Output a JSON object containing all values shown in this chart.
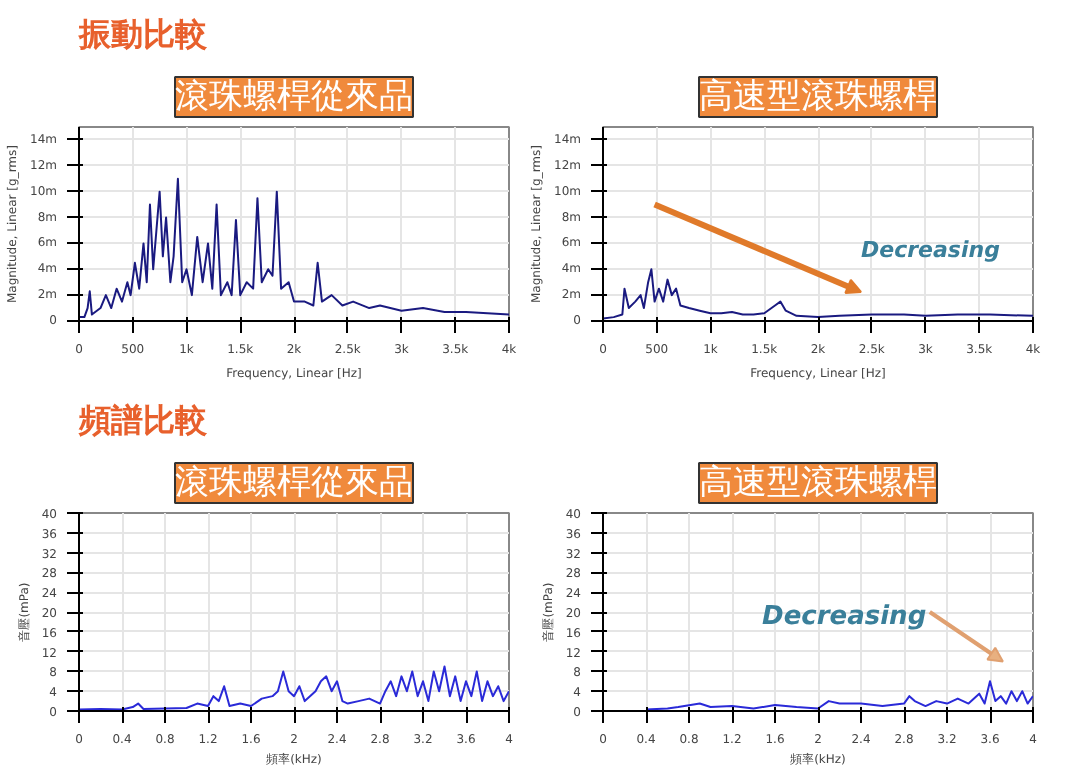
{
  "chart_data": [
    {
      "type": "line",
      "title": "滾珠螺桿從來品",
      "annotations": [
        "振動比較"
      ],
      "xlabel": "Frequency, Linear [Hz]",
      "ylabel": "Magnitude, Linear [g_rms]",
      "grid": true,
      "x": [
        0,
        50,
        80,
        100,
        120,
        200,
        250,
        300,
        350,
        400,
        450,
        480,
        520,
        560,
        600,
        630,
        660,
        690,
        720,
        750,
        780,
        810,
        850,
        880,
        920,
        960,
        1000,
        1050,
        1100,
        1150,
        1200,
        1240,
        1280,
        1320,
        1380,
        1420,
        1460,
        1500,
        1560,
        1620,
        1660,
        1700,
        1760,
        1800,
        1840,
        1880,
        1950,
        2000,
        2100,
        2180,
        2220,
        2260,
        2350,
        2450,
        2550,
        2700,
        2800,
        3000,
        3200,
        3400,
        3600,
        3800,
        4000
      ],
      "series": [
        {
          "color": "#1a1a80",
          "values": [
            0.3,
            0.3,
            1,
            2.3,
            0.5,
            1,
            2,
            1,
            2.5,
            1.5,
            3,
            2,
            4.5,
            2.5,
            6,
            3,
            9,
            4,
            7,
            10,
            5,
            8,
            3,
            5,
            11,
            3,
            4,
            2,
            6.5,
            3,
            6,
            2.5,
            9,
            2,
            3,
            2,
            7.8,
            2,
            3,
            2.5,
            9.5,
            3,
            4,
            3.5,
            10,
            2.5,
            3,
            1.5,
            1.5,
            1.2,
            4.5,
            1.5,
            2,
            1.2,
            1.5,
            1,
            1.2,
            0.8,
            1,
            0.7,
            0.7,
            0.6,
            0.5
          ]
        }
      ],
      "xlim": [
        0,
        4000
      ],
      "ylim": [
        0,
        15
      ],
      "xticks": [
        0,
        500,
        {
          "value": 1000,
          "label": "1k"
        },
        {
          "value": 1500,
          "label": "1.5k"
        },
        {
          "value": 2000,
          "label": "2k"
        },
        {
          "value": 2500,
          "label": "2.5k"
        },
        {
          "value": 3000,
          "label": "3k"
        },
        {
          "value": 3500,
          "label": "3.5k"
        },
        {
          "value": 4000,
          "label": "4k"
        }
      ],
      "yticks": [
        0,
        {
          "value": 2,
          "label": "2m"
        },
        {
          "value": 4,
          "label": "4m"
        },
        {
          "value": 6,
          "label": "6m"
        },
        {
          "value": 8,
          "label": "8m"
        },
        {
          "value": 10,
          "label": "10m"
        },
        {
          "value": 12,
          "label": "12m"
        },
        {
          "value": 14,
          "label": "14m"
        }
      ]
    },
    {
      "type": "line",
      "title": "高速型滾珠螺桿",
      "annotations": [
        "Decreasing"
      ],
      "xlabel": "Frequency, Linear [Hz]",
      "ylabel": "Magnitude, Linear [g_rms]",
      "grid": true,
      "x": [
        0,
        100,
        180,
        200,
        240,
        300,
        350,
        380,
        420,
        450,
        480,
        520,
        560,
        600,
        640,
        680,
        720,
        800,
        900,
        1000,
        1100,
        1200,
        1300,
        1400,
        1500,
        1600,
        1650,
        1700,
        1800,
        2000,
        2200,
        2500,
        2800,
        3000,
        3300,
        3600,
        4000
      ],
      "series": [
        {
          "color": "#1a1a80",
          "values": [
            0.2,
            0.3,
            0.5,
            2.5,
            1,
            1.5,
            2,
            1,
            3,
            4,
            1.5,
            2.5,
            1.5,
            3.2,
            2,
            2.5,
            1.2,
            1,
            0.8,
            0.6,
            0.6,
            0.7,
            0.5,
            0.5,
            0.6,
            1.2,
            1.5,
            0.8,
            0.4,
            0.3,
            0.4,
            0.5,
            0.5,
            0.4,
            0.5,
            0.5,
            0.4
          ]
        }
      ],
      "xlim": [
        0,
        4000
      ],
      "ylim": [
        0,
        15
      ],
      "xticks": [
        0,
        500,
        {
          "value": 1000,
          "label": "1k"
        },
        {
          "value": 1500,
          "label": "1.5k"
        },
        {
          "value": 2000,
          "label": "2k"
        },
        {
          "value": 2500,
          "label": "2.5k"
        },
        {
          "value": 3000,
          "label": "3k"
        },
        {
          "value": 3500,
          "label": "3.5k"
        },
        {
          "value": 4000,
          "label": "4k"
        }
      ],
      "yticks": [
        0,
        {
          "value": 2,
          "label": "2m"
        },
        {
          "value": 4,
          "label": "4m"
        },
        {
          "value": 6,
          "label": "6m"
        },
        {
          "value": 8,
          "label": "8m"
        },
        {
          "value": 10,
          "label": "10m"
        },
        {
          "value": 12,
          "label": "12m"
        },
        {
          "value": 14,
          "label": "14m"
        }
      ]
    },
    {
      "type": "line",
      "title": "滾珠螺桿從來品",
      "annotations": [
        "頻譜比較"
      ],
      "xlabel": "頻率(kHz)",
      "ylabel": "音壓(mPa)",
      "grid": true,
      "x": [
        0,
        0.2,
        0.4,
        0.5,
        0.55,
        0.6,
        0.8,
        1.0,
        1.1,
        1.2,
        1.25,
        1.3,
        1.35,
        1.4,
        1.5,
        1.6,
        1.7,
        1.8,
        1.85,
        1.9,
        1.95,
        2.0,
        2.05,
        2.1,
        2.2,
        2.25,
        2.3,
        2.35,
        2.4,
        2.45,
        2.5,
        2.6,
        2.7,
        2.8,
        2.85,
        2.9,
        2.95,
        3.0,
        3.05,
        3.1,
        3.15,
        3.2,
        3.25,
        3.3,
        3.35,
        3.4,
        3.45,
        3.5,
        3.55,
        3.6,
        3.65,
        3.7,
        3.75,
        3.8,
        3.85,
        3.9,
        3.95,
        4.0
      ],
      "series": [
        {
          "color": "#2a2ad8",
          "values": [
            0.3,
            0.4,
            0.3,
            0.8,
            1.5,
            0.4,
            0.5,
            0.6,
            1.5,
            1,
            3,
            2,
            5,
            1,
            1.5,
            1,
            2.5,
            3,
            4,
            8,
            4,
            3,
            5,
            2,
            4,
            6,
            7,
            4,
            6,
            2,
            1.5,
            2,
            2.5,
            1.5,
            4,
            6,
            3,
            7,
            4,
            8,
            3,
            6,
            2,
            8,
            4,
            9,
            3,
            7,
            2,
            6,
            3,
            8,
            2,
            6,
            3,
            5,
            2,
            4
          ]
        }
      ],
      "xlim": [
        0,
        4
      ],
      "ylim": [
        0,
        40
      ],
      "xticks": [
        0,
        0.4,
        0.8,
        1.2,
        1.6,
        2,
        2.4,
        2.8,
        3.2,
        3.6,
        4
      ],
      "yticks": [
        0,
        4,
        8,
        12,
        16,
        20,
        24,
        28,
        32,
        36,
        40
      ]
    },
    {
      "type": "line",
      "title": "高速型滾珠螺桿",
      "annotations": [
        "Decreasing"
      ],
      "xlabel": "頻率(kHz)",
      "ylabel": "音壓(mPa)",
      "grid": true,
      "x": [
        0.4,
        0.6,
        0.7,
        0.9,
        1.0,
        1.2,
        1.4,
        1.6,
        1.8,
        2.0,
        2.1,
        2.2,
        2.4,
        2.6,
        2.8,
        2.85,
        2.9,
        3.0,
        3.1,
        3.2,
        3.3,
        3.4,
        3.5,
        3.55,
        3.6,
        3.65,
        3.7,
        3.75,
        3.8,
        3.85,
        3.9,
        3.95,
        4.0
      ],
      "series": [
        {
          "color": "#2a2ad8",
          "values": [
            0.3,
            0.5,
            0.8,
            1.5,
            0.8,
            1,
            0.5,
            1.2,
            0.8,
            0.5,
            2,
            1.5,
            1.5,
            1,
            1.5,
            3,
            2,
            1,
            2,
            1.5,
            2.5,
            1.5,
            3.5,
            1.5,
            6,
            2,
            3,
            1.5,
            4,
            2,
            4,
            1.5,
            3
          ]
        }
      ],
      "xlim": [
        0,
        4
      ],
      "ylim": [
        0,
        40
      ],
      "xticks": [
        0,
        0.4,
        0.8,
        1.2,
        1.6,
        2,
        2.4,
        2.8,
        3.2,
        3.6,
        4
      ],
      "yticks": [
        0,
        4,
        8,
        12,
        16,
        20,
        24,
        28,
        32,
        36,
        40
      ]
    }
  ]
}
